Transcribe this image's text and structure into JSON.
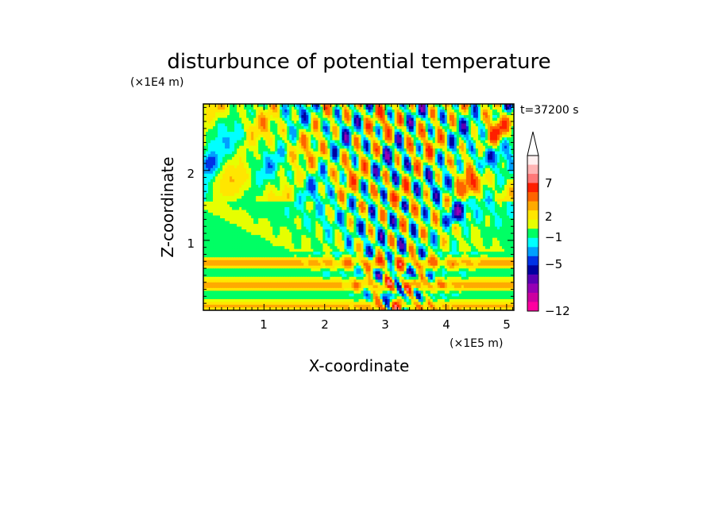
{
  "chart_data": {
    "type": "heatmap",
    "title": "disturbunce of potential temperature",
    "time_label": "t=37200 s",
    "xlabel": "X-coordinate",
    "ylabel": "Z-coordinate",
    "x_unit": "(×1E5 m)",
    "y_unit": "(×1E4 m)",
    "xlim": [
      0,
      5.12
    ],
    "ylim": [
      0,
      2.95
    ],
    "x_ticks": [
      "1",
      "2",
      "3",
      "4",
      "5"
    ],
    "y_ticks": [
      "1",
      "2"
    ],
    "colorbar": {
      "ticks": [
        "7",
        "2",
        "−1",
        "−5",
        "−12"
      ],
      "levels": [
        -12,
        -10,
        -8,
        -6,
        -5,
        -4,
        -3,
        -2,
        -1,
        0,
        1,
        2,
        3,
        5,
        7,
        9,
        11
      ],
      "colors": [
        "#ff00a0",
        "#cc00a0",
        "#9600b4",
        "#5a00b4",
        "#0000a0",
        "#0032e6",
        "#00a0ff",
        "#00ffff",
        "#00ff64",
        "#e6ff00",
        "#ffe600",
        "#ffaa00",
        "#ff6400",
        "#ff1e00",
        "#ff7878",
        "#ffb4b4",
        "#fff0f0"
      ]
    }
  }
}
